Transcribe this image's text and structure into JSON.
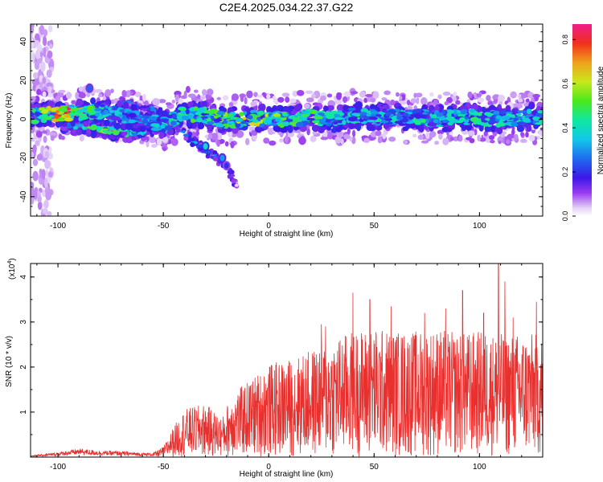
{
  "title": "C2E4.2025.034.22.37.G22",
  "chart_data": [
    {
      "type": "heatmap",
      "xlabel": "Height of straight line (km)",
      "ylabel": "Frequency (Hz)",
      "xlim": [
        -113,
        130
      ],
      "ylim": [
        -50,
        49
      ],
      "xticks": [
        -100,
        -50,
        0,
        50,
        100
      ],
      "yticks": [
        -40,
        -20,
        0,
        20,
        40
      ],
      "colorbar": {
        "label": "Normalized spectral amplitude",
        "range": [
          0,
          0.87
        ],
        "ticks": [
          0.0,
          0.2,
          0.4,
          0.6,
          0.8
        ],
        "tick_labels": [
          "0.0",
          "0.2",
          "0.4",
          "0.6",
          "0.8"
        ]
      },
      "ridge": [
        {
          "x": -110,
          "f": 2,
          "amp": 0.55
        },
        {
          "x": -100,
          "f": 3,
          "amp": 0.75
        },
        {
          "x": -95,
          "f": 3,
          "amp": 0.8
        },
        {
          "x": -88,
          "f": 3,
          "amp": 0.6
        },
        {
          "x": -80,
          "f": 4,
          "amp": 0.4
        },
        {
          "x": -70,
          "f": 2,
          "amp": 0.35
        },
        {
          "x": -60,
          "f": 0,
          "amp": 0.3
        },
        {
          "x": -50,
          "f": -3,
          "amp": 0.4
        },
        {
          "x": -40,
          "f": 3,
          "amp": 0.5
        },
        {
          "x": -30,
          "f": 2,
          "amp": 0.45
        },
        {
          "x": -20,
          "f": -1,
          "amp": 0.55
        },
        {
          "x": -10,
          "f": 1,
          "amp": 0.6
        },
        {
          "x": 0,
          "f": 0,
          "amp": 0.55
        },
        {
          "x": 10,
          "f": 0,
          "amp": 0.5
        },
        {
          "x": 20,
          "f": 1,
          "amp": 0.5
        },
        {
          "x": 30,
          "f": 0,
          "amp": 0.45
        },
        {
          "x": 40,
          "f": 2,
          "amp": 0.45
        },
        {
          "x": 50,
          "f": 1,
          "amp": 0.4
        },
        {
          "x": 60,
          "f": 1,
          "amp": 0.4
        },
        {
          "x": 70,
          "f": 1,
          "amp": 0.45
        },
        {
          "x": 80,
          "f": 0,
          "amp": 0.4
        },
        {
          "x": 90,
          "f": 1,
          "amp": 0.4
        },
        {
          "x": 100,
          "f": 1,
          "amp": 0.45
        },
        {
          "x": 110,
          "f": 0,
          "amp": 0.4
        },
        {
          "x": 120,
          "f": 1,
          "amp": 0.4
        },
        {
          "x": 128,
          "f": 1,
          "amp": 0.4
        }
      ],
      "secondary_ridge": [
        {
          "x": -100,
          "f": -2,
          "amp": 0.35
        },
        {
          "x": -85,
          "f": -4,
          "amp": 0.5
        },
        {
          "x": -75,
          "f": -6,
          "amp": 0.55
        },
        {
          "x": -65,
          "f": -7,
          "amp": 0.45
        },
        {
          "x": -55,
          "f": -5,
          "amp": 0.35
        }
      ],
      "branches": [
        [
          {
            "x": -70,
            "f": 9,
            "amp": 0.25
          },
          {
            "x": -55,
            "f": 5,
            "amp": 0.3
          },
          {
            "x": -45,
            "f": -1,
            "amp": 0.3
          },
          {
            "x": -38,
            "f": -9,
            "amp": 0.3
          },
          {
            "x": -33,
            "f": -14,
            "amp": 0.35
          },
          {
            "x": -25,
            "f": -20,
            "amp": 0.25
          },
          {
            "x": -20,
            "f": -24,
            "amp": 0.2
          },
          {
            "x": -15,
            "f": -35,
            "amp": 0.05
          }
        ]
      ],
      "isolated_blobs": [
        {
          "x": -85,
          "f": 16,
          "amp": 0.25
        },
        {
          "x": -30,
          "f": -14,
          "amp": 0.4
        },
        {
          "x": -22,
          "f": -20,
          "amp": 0.3
        },
        {
          "x": -20,
          "f": -24,
          "amp": 0.2
        }
      ]
    },
    {
      "type": "line",
      "xlabel": "Height of straight line (km)",
      "ylabel": "SNR (10 * v/v)",
      "multiplier_label": "(x10",
      "multiplier_exponent": "4",
      "multiplier_close": ")",
      "xlim": [
        -113,
        130
      ],
      "ylim": [
        0,
        4.3
      ],
      "xticks": [
        -100,
        -50,
        0,
        50,
        100
      ],
      "yticks": [
        1,
        2,
        3,
        4
      ],
      "color": "#e8302e",
      "series": [
        {
          "envelope_x": [
            -113,
            -100,
            -90,
            -80,
            -70,
            -60,
            -55,
            -50,
            -45,
            -40,
            -30,
            -22,
            -18,
            -10,
            0,
            10,
            20,
            30,
            40,
            50,
            60,
            70,
            80,
            90,
            100,
            110,
            120,
            130
          ],
          "envelope_y": [
            0.03,
            0.09,
            0.16,
            0.12,
            0.11,
            0.08,
            0.08,
            0.18,
            0.55,
            0.85,
            0.95,
            0.7,
            1.1,
            1.35,
            1.65,
            1.75,
            1.9,
            2.1,
            2.25,
            2.3,
            2.25,
            2.25,
            2.3,
            2.2,
            2.25,
            2.2,
            2.2,
            2.2
          ],
          "peaks": [
            {
              "x": 25,
              "y": 2.95
            },
            {
              "x": 27,
              "y": 2.9
            },
            {
              "x": 40,
              "y": 3.65
            },
            {
              "x": 48,
              "y": 3.5
            },
            {
              "x": 58,
              "y": 3.35
            },
            {
              "x": 74,
              "y": 3.2
            },
            {
              "x": 84,
              "y": 3.3
            },
            {
              "x": 92,
              "y": 3.7
            },
            {
              "x": 102,
              "y": 3.2
            },
            {
              "x": 109,
              "y": 4.3
            },
            {
              "x": 112,
              "y": 3.9
            },
            {
              "x": 116,
              "y": 3.1
            },
            {
              "x": 127,
              "y": 3.45
            }
          ]
        }
      ]
    }
  ]
}
